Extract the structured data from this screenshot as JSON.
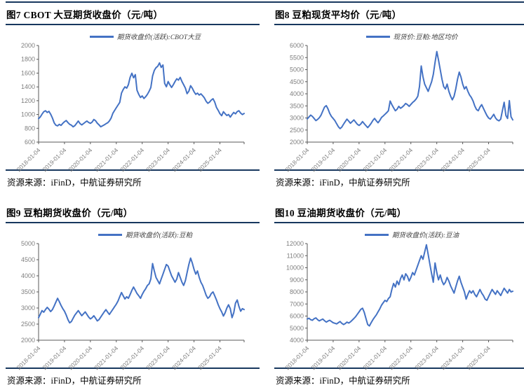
{
  "figures": [
    {
      "title": "图7 CBOT 大豆期货收盘价（元/吨）",
      "legend": "期货收盘价(活跃):CBOT大豆",
      "source": "资源来源：iFinD，中航证券研究所"
    },
    {
      "title": "图8 豆粕现货平均价（元/吨）",
      "legend": "现货价:豆粕:地区均价",
      "source": "资源来源：iFinD，中航证券研究所"
    },
    {
      "title": "图9 豆粕期货收盘价（元/吨）",
      "legend": "期货收盘价(活跃):豆粕",
      "source": "资源来源：iFinD，中航证券研究所"
    },
    {
      "title": "图10 豆油期货收盘价（元/吨）",
      "legend": "期货收盘价(活跃):豆油",
      "source": "资源来源：iFinD，中航证券研究所"
    }
  ],
  "colors": {
    "series_blue": "#4472C4",
    "rule_navy": "#17375E",
    "axis_line": "#595959",
    "axis_text": "#7f7f7f"
  },
  "chart_data": [
    {
      "type": "line",
      "title": "图7 CBOT 大豆期货收盘价（元/吨）",
      "legend": "期货收盘价(活跃):CBOT大豆",
      "xlabel": "",
      "ylabel": "",
      "grid": false,
      "legend_position": "top-center",
      "x_tick_labels": [
        "2018-01-04",
        "2019-01-04",
        "2020-01-04",
        "2021-01-04",
        "2022-01-04",
        "2023-01-04",
        "2024-01-04",
        "2025-01-04"
      ],
      "ylim": [
        600,
        2000
      ],
      "y_step": 200,
      "line_color": "#4472C4",
      "values": [
        940,
        965,
        1005,
        1040,
        1055,
        1030,
        1045,
        1005,
        950,
        880,
        845,
        835,
        858,
        842,
        872,
        895,
        912,
        882,
        858,
        845,
        822,
        838,
        872,
        905,
        868,
        850,
        868,
        888,
        905,
        884,
        872,
        890,
        928,
        908,
        874,
        850,
        822,
        836,
        850,
        866,
        880,
        906,
        948,
        1018,
        1058,
        1098,
        1138,
        1175,
        1310,
        1362,
        1400,
        1382,
        1432,
        1538,
        1598,
        1532,
        1578,
        1352,
        1292,
        1246,
        1270,
        1232,
        1258,
        1292,
        1338,
        1390,
        1558,
        1640,
        1678,
        1700,
        1748,
        1682,
        1718,
        1452,
        1402,
        1478,
        1432,
        1392,
        1432,
        1478,
        1518,
        1498,
        1538,
        1478,
        1432,
        1382,
        1302,
        1338,
        1418,
        1382,
        1330,
        1292,
        1310,
        1282,
        1300,
        1272,
        1240,
        1192,
        1162,
        1180,
        1210,
        1228,
        1180,
        1102,
        1060,
        1012,
        982,
        1040,
        1012,
        986,
        1000,
        962,
        1000,
        1030,
        1010,
        1042,
        1055,
        1020,
        1000,
        1015
      ]
    },
    {
      "type": "line",
      "title": "图8 豆粕现货平均价（元/吨）",
      "legend": "现货价:豆粕:地区均价",
      "xlabel": "",
      "ylabel": "",
      "grid": false,
      "legend_position": "top-center",
      "x_tick_labels": [
        "2018-01-04",
        "2019-01-04",
        "2020-01-04",
        "2021-01-04",
        "2022-01-04",
        "2023-01-04",
        "2024-01-04",
        "2025-01-04"
      ],
      "ylim": [
        2000,
        6000
      ],
      "y_step": 500,
      "line_color": "#4472C4",
      "values": [
        2960,
        3040,
        3120,
        3060,
        2980,
        2890,
        2940,
        3010,
        3120,
        3290,
        3450,
        3510,
        3380,
        3190,
        3060,
        2980,
        2890,
        2760,
        2640,
        2560,
        2620,
        2740,
        2850,
        2950,
        2870,
        2780,
        2850,
        2920,
        2830,
        2740,
        2690,
        2750,
        2850,
        2760,
        2680,
        2600,
        2680,
        2780,
        2900,
        2980,
        2880,
        2800,
        2900,
        3020,
        3080,
        3150,
        3220,
        3300,
        3700,
        3550,
        3420,
        3300,
        3360,
        3480,
        3400,
        3450,
        3520,
        3600,
        3550,
        3480,
        3560,
        3640,
        3700,
        3780,
        3900,
        4300,
        5150,
        4700,
        4400,
        4250,
        4100,
        4300,
        4500,
        4800,
        5300,
        5750,
        5400,
        5000,
        4600,
        4300,
        4200,
        4400,
        4100,
        3900,
        3750,
        3900,
        4200,
        4600,
        4900,
        4700,
        4400,
        4200,
        4300,
        4100,
        3950,
        3850,
        3700,
        3500,
        3350,
        3300,
        3450,
        3550,
        3400,
        3250,
        3100,
        3000,
        2950,
        3050,
        3150,
        3000,
        2920,
        2880,
        2950,
        3300,
        3650,
        3100,
        2980,
        3720,
        3050,
        2920
      ]
    },
    {
      "type": "line",
      "title": "图9 豆粕期货收盘价（元/吨）",
      "legend": "期货收盘价(活跃):豆粕",
      "xlabel": "",
      "ylabel": "",
      "grid": false,
      "legend_position": "top-center",
      "x_tick_labels": [
        "2018-01-04",
        "2019-01-04",
        "2020-01-04",
        "2021-01-04",
        "2022-01-04",
        "2023-01-04",
        "2024-01-04",
        "2025-01-04"
      ],
      "ylim": [
        2000,
        5000
      ],
      "y_step": 500,
      "line_color": "#4472C4",
      "values": [
        2700,
        2810,
        2920,
        2870,
        2950,
        3020,
        2960,
        2890,
        2950,
        3060,
        3180,
        3300,
        3200,
        3080,
        2980,
        2900,
        2780,
        2640,
        2540,
        2580,
        2680,
        2780,
        2850,
        2920,
        2840,
        2760,
        2820,
        2880,
        2800,
        2720,
        2660,
        2700,
        2760,
        2680,
        2600,
        2640,
        2720,
        2800,
        2880,
        2950,
        2870,
        2800,
        2880,
        2960,
        3040,
        3120,
        3220,
        3350,
        3480,
        3380,
        3280,
        3350,
        3300,
        3420,
        3550,
        3650,
        3550,
        3450,
        3380,
        3300,
        3420,
        3520,
        3600,
        3700,
        3750,
        3900,
        4380,
        4150,
        3950,
        3850,
        3750,
        3900,
        4050,
        4200,
        4350,
        4300,
        4150,
        4000,
        3900,
        3800,
        3900,
        4100,
        3950,
        3800,
        3700,
        3850,
        4100,
        4350,
        4550,
        4400,
        4200,
        4050,
        4150,
        3950,
        3800,
        3700,
        3550,
        3400,
        3300,
        3350,
        3450,
        3500,
        3380,
        3250,
        3100,
        2980,
        2880,
        2750,
        2850,
        3000,
        3100,
        2980,
        2700,
        2850,
        3150,
        3250,
        3050,
        2900,
        2980,
        2950
      ]
    },
    {
      "type": "line",
      "title": "图10 豆油期货收盘价（元/吨）",
      "legend": "期货收盘价(活跃):豆油",
      "xlabel": "",
      "ylabel": "",
      "grid": false,
      "legend_position": "top-center",
      "x_tick_labels": [
        "2018-01-04",
        "2019-01-04",
        "2020-01-04",
        "2021-01-04",
        "2022-01-04",
        "2023-01-04",
        "2024-01-04",
        "2025-01-04"
      ],
      "ylim": [
        4000,
        12000
      ],
      "y_step": 1000,
      "line_color": "#4472C4",
      "values": [
        5750,
        5820,
        5700,
        5650,
        5780,
        5850,
        5700,
        5600,
        5680,
        5750,
        5620,
        5500,
        5580,
        5650,
        5550,
        5450,
        5400,
        5350,
        5450,
        5550,
        5400,
        5300,
        5380,
        5500,
        5420,
        5520,
        5650,
        5800,
        5950,
        6150,
        6350,
        6550,
        6650,
        6300,
        5800,
        5300,
        5180,
        5450,
        5700,
        5900,
        6100,
        6350,
        6600,
        6900,
        7100,
        7300,
        7200,
        7450,
        7600,
        8200,
        8700,
        8400,
        8900,
        8600,
        9100,
        9400,
        9000,
        9500,
        9300,
        8900,
        9200,
        9600,
        9400,
        9800,
        10200,
        10600,
        11000,
        10700,
        11300,
        11900,
        11100,
        10300,
        9500,
        8800,
        10400,
        9600,
        9000,
        9400,
        8900,
        8600,
        8800,
        9200,
        8900,
        8500,
        8200,
        7900,
        8400,
        8900,
        9300,
        8800,
        8400,
        8000,
        7400,
        7800,
        8100,
        7900,
        8100,
        7800,
        7600,
        7900,
        8200,
        7900,
        7700,
        7400,
        7300,
        7600,
        7900,
        8200,
        8000,
        7800,
        8100,
        7900,
        7700,
        8000,
        8300,
        8100,
        7900,
        8200,
        8000,
        8050
      ]
    }
  ]
}
